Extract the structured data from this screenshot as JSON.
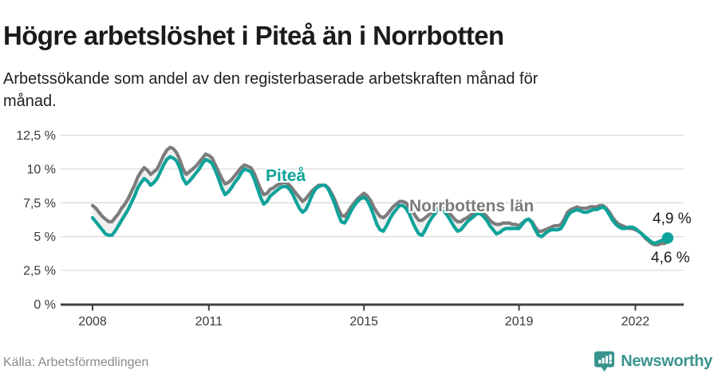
{
  "header": {
    "title": "Högre arbetslöshet i Piteå än i Norrbotten",
    "subtitle": "Arbetssökande som andel av den registerbaserade arbetskraften månad för månad."
  },
  "chart_data": {
    "type": "line",
    "title": "Högre arbetslöshet i Piteå än i Norrbotten",
    "subtitle": "Arbetssökande som andel av den registerbaserade arbetskraften månad för månad.",
    "x_unit": "month",
    "x_range": [
      "2008-01",
      "2022-11"
    ],
    "x_ticks": [
      2008,
      2011,
      2015,
      2019,
      2022
    ],
    "y_ticks": [
      "0 %",
      "2,5 %",
      "5 %",
      "7,5 %",
      "10 %",
      "12,5 %"
    ],
    "y_tick_values": [
      0,
      2.5,
      5,
      7.5,
      10,
      12.5
    ],
    "ylim": [
      0,
      13.2
    ],
    "grid": true,
    "legend_position": "inline-labels",
    "grid_color": "#dadada",
    "axis_color": "#404040",
    "fill_between_color": "#f0f0f0",
    "series": [
      {
        "name": "Piteå",
        "color": "#0ea39a",
        "values": [
          6.4,
          6.1,
          5.8,
          5.5,
          5.2,
          5.1,
          5.1,
          5.4,
          5.8,
          6.2,
          6.6,
          7.0,
          7.5,
          8.0,
          8.6,
          9.0,
          9.3,
          9.1,
          8.8,
          9.0,
          9.3,
          9.8,
          10.3,
          10.7,
          10.9,
          10.8,
          10.6,
          10.1,
          9.3,
          8.9,
          9.1,
          9.4,
          9.7,
          10.0,
          10.4,
          10.7,
          10.6,
          10.4,
          9.9,
          9.3,
          8.6,
          8.1,
          8.3,
          8.6,
          9.0,
          9.3,
          9.7,
          10.0,
          9.9,
          9.8,
          9.3,
          8.6,
          7.9,
          7.4,
          7.6,
          8.0,
          8.2,
          8.4,
          8.6,
          8.7,
          8.7,
          8.5,
          8.1,
          7.6,
          7.1,
          6.8,
          7.0,
          7.5,
          8.1,
          8.5,
          8.7,
          8.8,
          8.8,
          8.5,
          8.0,
          7.4,
          6.7,
          6.1,
          6.0,
          6.4,
          6.9,
          7.3,
          7.6,
          7.8,
          7.9,
          7.7,
          7.2,
          6.6,
          5.9,
          5.5,
          5.4,
          5.8,
          6.3,
          6.7,
          7.0,
          7.3,
          7.3,
          7.1,
          6.7,
          6.1,
          5.6,
          5.2,
          5.1,
          5.5,
          6.0,
          6.4,
          6.7,
          7.0,
          7.0,
          6.8,
          6.5,
          6.1,
          5.7,
          5.4,
          5.5,
          5.8,
          6.1,
          6.3,
          6.5,
          6.7,
          6.7,
          6.5,
          6.2,
          5.8,
          5.5,
          5.2,
          5.3,
          5.5,
          5.6,
          5.6,
          5.6,
          5.6,
          5.6,
          5.9,
          6.2,
          6.3,
          6.0,
          5.5,
          5.1,
          5.0,
          5.2,
          5.4,
          5.5,
          5.5,
          5.5,
          5.6,
          6.0,
          6.5,
          6.8,
          6.9,
          7.0,
          6.9,
          6.8,
          6.8,
          6.9,
          7.0,
          7.0,
          7.1,
          7.2,
          7.0,
          6.6,
          6.2,
          5.9,
          5.7,
          5.6,
          5.6,
          5.7,
          5.7,
          5.6,
          5.4,
          5.2,
          5.0,
          4.8,
          4.6,
          4.5,
          4.6,
          4.7,
          4.8,
          4.9
        ]
      },
      {
        "name": "Norrbottens län",
        "color": "#7c7c7c",
        "values": [
          7.3,
          7.1,
          6.8,
          6.5,
          6.3,
          6.1,
          6.1,
          6.4,
          6.7,
          7.1,
          7.4,
          7.8,
          8.3,
          8.8,
          9.4,
          9.8,
          10.1,
          9.9,
          9.6,
          9.8,
          10.0,
          10.5,
          11.0,
          11.4,
          11.6,
          11.5,
          11.2,
          10.7,
          10.0,
          9.6,
          9.8,
          10.0,
          10.2,
          10.5,
          10.8,
          11.1,
          11.0,
          10.8,
          10.3,
          9.8,
          9.3,
          8.9,
          9.0,
          9.2,
          9.5,
          9.8,
          10.1,
          10.3,
          10.2,
          10.1,
          9.7,
          9.1,
          8.5,
          8.1,
          8.2,
          8.5,
          8.6,
          8.8,
          8.9,
          9.0,
          9.0,
          8.8,
          8.5,
          8.2,
          7.9,
          7.6,
          7.8,
          8.1,
          8.4,
          8.6,
          8.8,
          8.8,
          8.8,
          8.6,
          8.2,
          7.7,
          7.1,
          6.6,
          6.5,
          6.8,
          7.2,
          7.5,
          7.8,
          8.0,
          8.2,
          8.0,
          7.7,
          7.2,
          6.8,
          6.5,
          6.4,
          6.6,
          6.9,
          7.2,
          7.4,
          7.6,
          7.6,
          7.5,
          7.2,
          6.9,
          6.5,
          6.2,
          6.2,
          6.4,
          6.6,
          6.8,
          7.1,
          7.3,
          7.3,
          7.2,
          6.9,
          6.6,
          6.3,
          6.1,
          6.1,
          6.3,
          6.4,
          6.6,
          6.7,
          6.9,
          6.9,
          6.7,
          6.5,
          6.2,
          6.0,
          5.9,
          5.9,
          6.0,
          6.0,
          6.0,
          5.9,
          5.9,
          5.8,
          6.0,
          6.2,
          6.3,
          6.1,
          5.7,
          5.4,
          5.4,
          5.5,
          5.6,
          5.7,
          5.8,
          5.8,
          5.9,
          6.3,
          6.8,
          7.0,
          7.1,
          7.2,
          7.1,
          7.1,
          7.1,
          7.2,
          7.2,
          7.2,
          7.3,
          7.3,
          7.1,
          6.8,
          6.4,
          6.1,
          5.9,
          5.8,
          5.7,
          5.6,
          5.6,
          5.5,
          5.4,
          5.2,
          4.9,
          4.7,
          4.5,
          4.4,
          4.4,
          4.5,
          4.5,
          4.6
        ]
      }
    ],
    "end_labels": {
      "pitea": "4,9 %",
      "norrbotten": "4,6 %"
    }
  },
  "footer": {
    "source": "Källa: Arbetsförmedlingen",
    "brand": "Newsworthy",
    "brand_color": "#39948d"
  }
}
